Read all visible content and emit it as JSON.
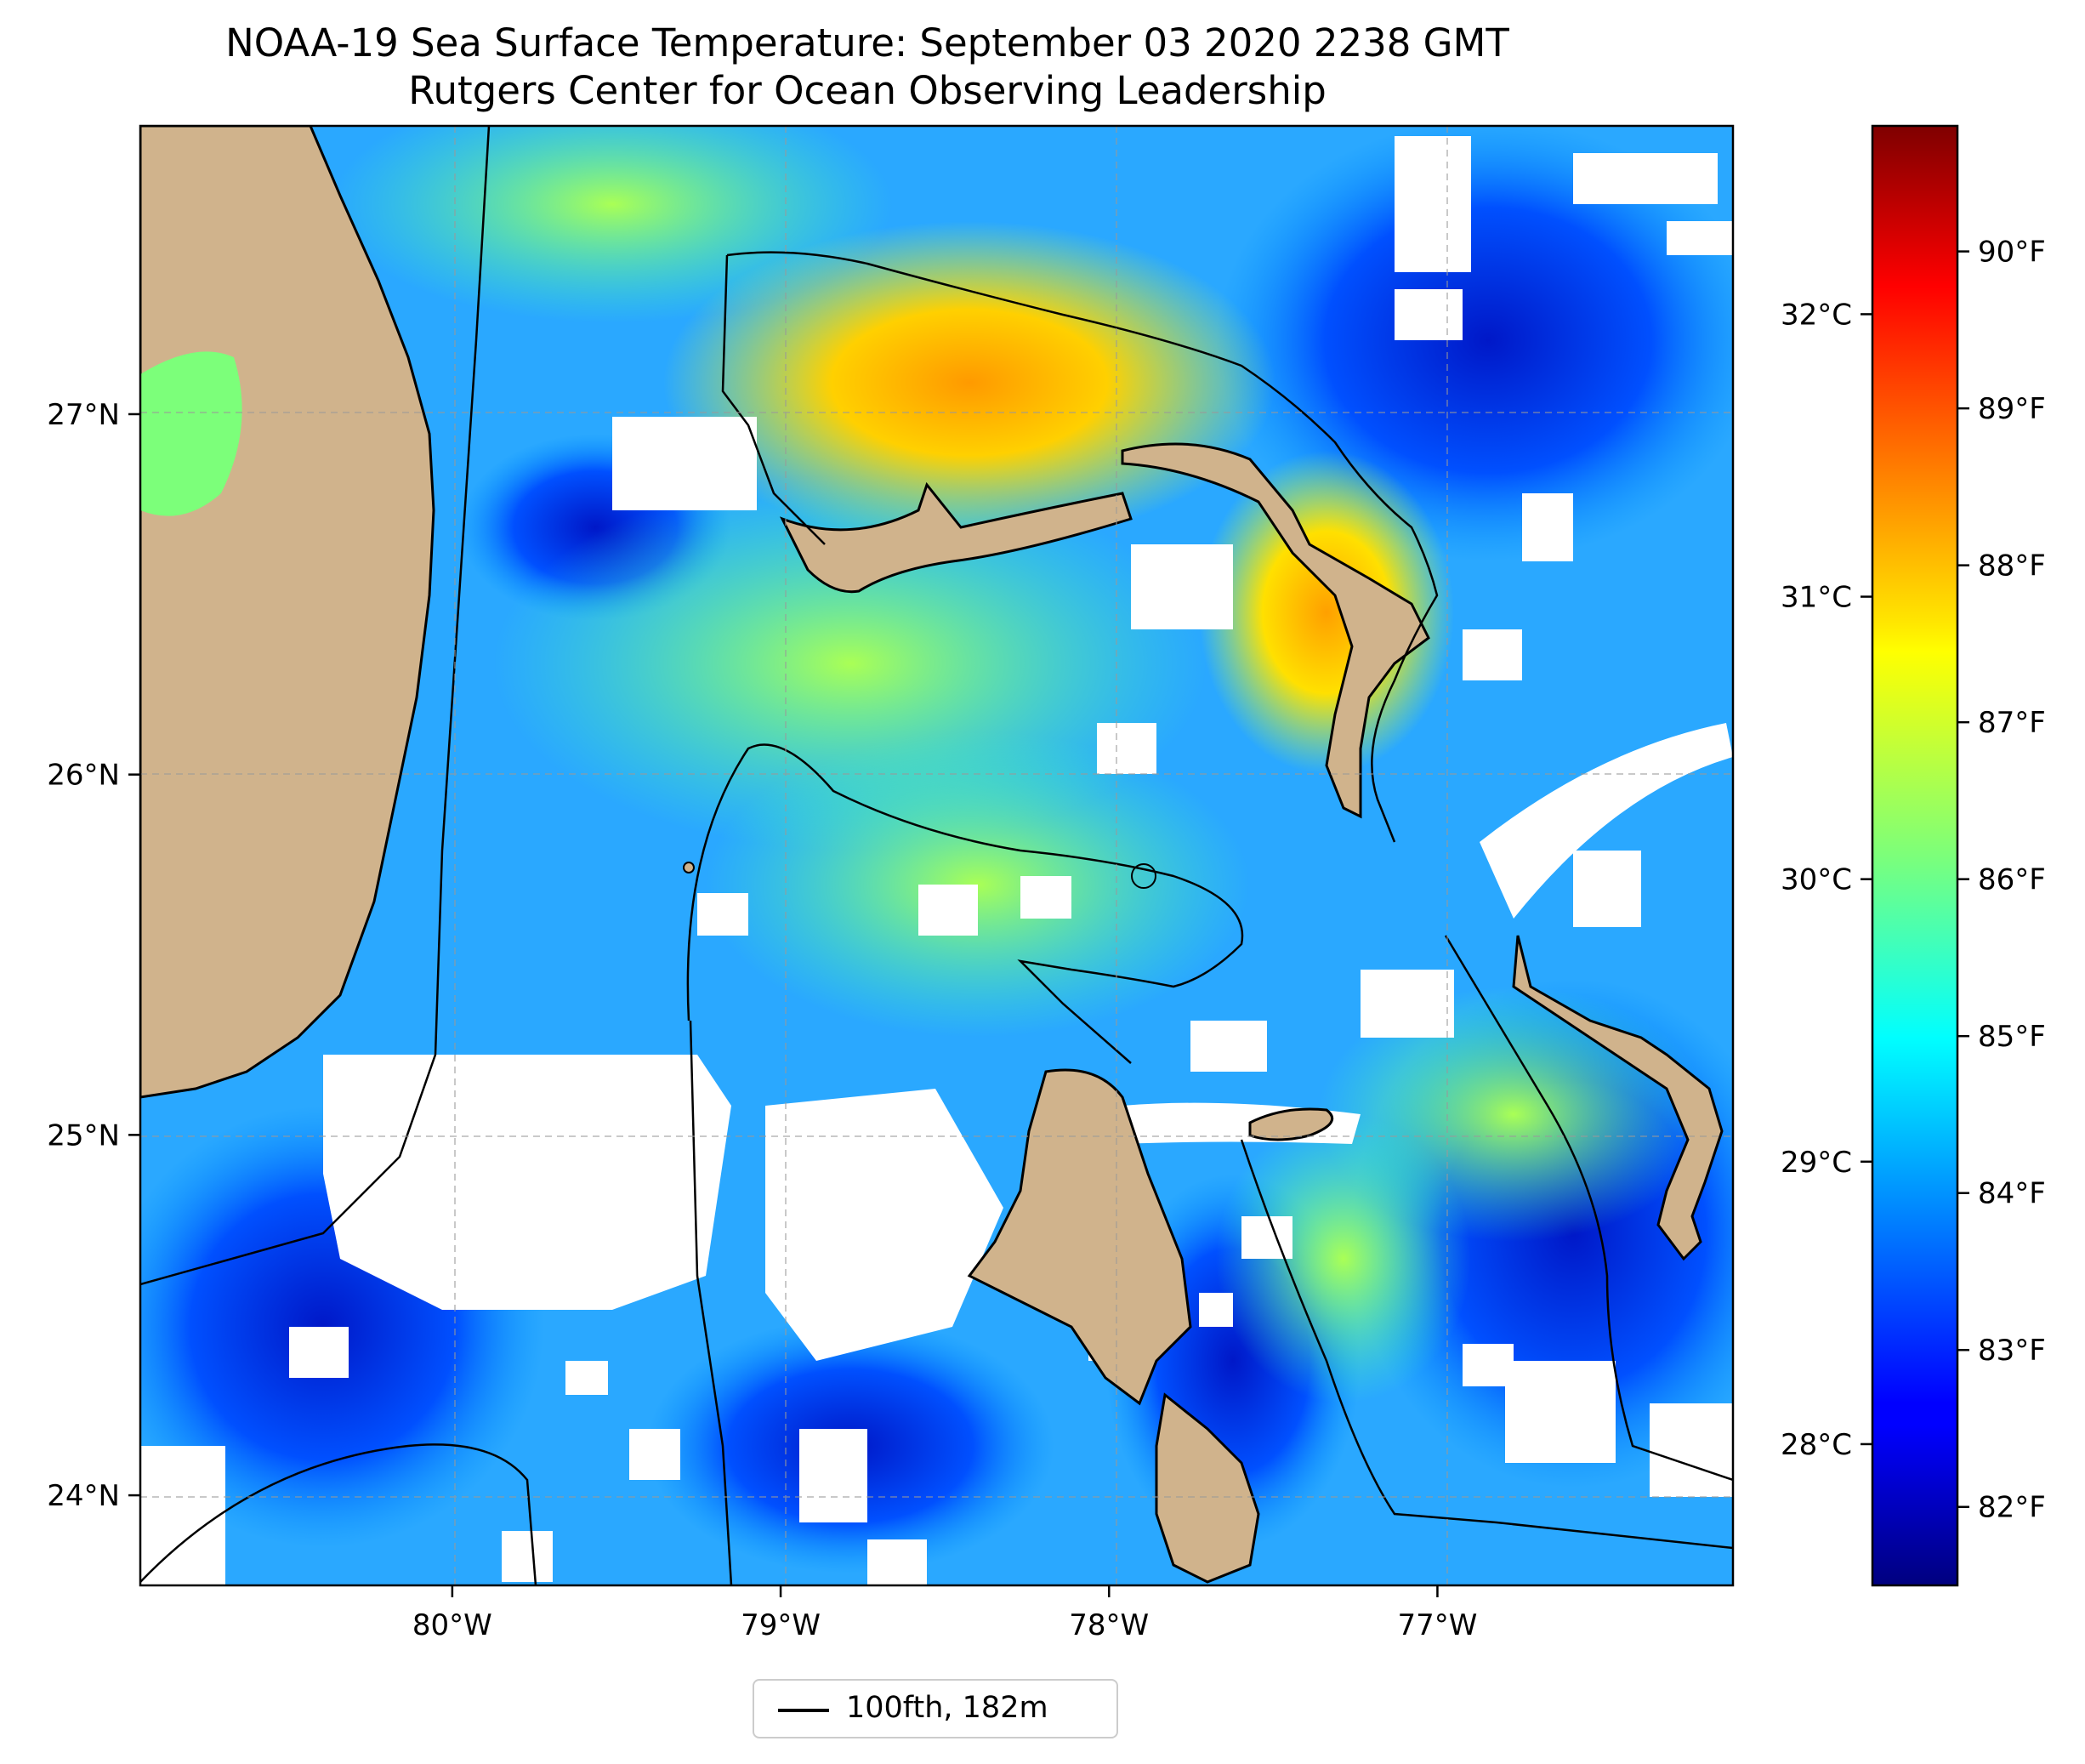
{
  "title": {
    "line1": "NOAA-19 Sea Surface Temperature: September 03 2020 2238 GMT",
    "line2": "Rutgers Center for Ocean Observing Leadership"
  },
  "map": {
    "lon_range": [
      -80.95,
      -76.1
    ],
    "lat_range": [
      23.75,
      27.8
    ],
    "lon_ticks": [
      {
        "value": -80,
        "label": "80°W"
      },
      {
        "value": -79,
        "label": "79°W"
      },
      {
        "value": -78,
        "label": "78°W"
      },
      {
        "value": -77,
        "label": "77°W"
      }
    ],
    "lat_ticks": [
      {
        "value": 27,
        "label": "27°N"
      },
      {
        "value": 26,
        "label": "26°N"
      },
      {
        "value": 25,
        "label": "25°N"
      },
      {
        "value": 24,
        "label": "24°N"
      }
    ],
    "gridlines": "dashed gray",
    "land_color": "#d0b38c",
    "colormap": "jet",
    "cloud_mask_color": "#ffffff"
  },
  "colorbar": {
    "range_f": [
      81.5,
      90.8
    ],
    "fahrenheit_ticks": [
      {
        "value": 82,
        "label": "82°F"
      },
      {
        "value": 83,
        "label": "83°F"
      },
      {
        "value": 84,
        "label": "84°F"
      },
      {
        "value": 85,
        "label": "85°F"
      },
      {
        "value": 86,
        "label": "86°F"
      },
      {
        "value": 87,
        "label": "87°F"
      },
      {
        "value": 88,
        "label": "88°F"
      },
      {
        "value": 89,
        "label": "89°F"
      },
      {
        "value": 90,
        "label": "90°F"
      }
    ],
    "celsius_ticks": [
      {
        "value": 28,
        "label": "28°C"
      },
      {
        "value": 29,
        "label": "29°C"
      },
      {
        "value": 30,
        "label": "30°C"
      },
      {
        "value": 31,
        "label": "31°C"
      },
      {
        "value": 32,
        "label": "32°C"
      }
    ]
  },
  "legend": {
    "label": "100fth, 182m",
    "line_color": "#000000"
  }
}
